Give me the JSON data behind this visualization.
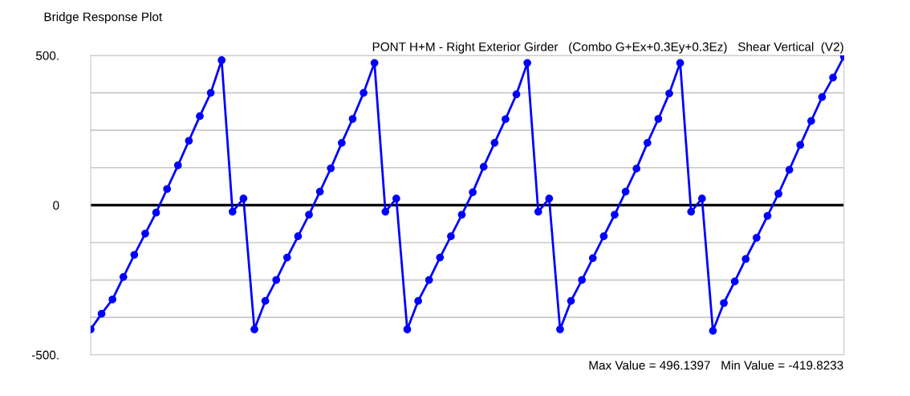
{
  "chart_data": {
    "type": "line",
    "title": "Bridge Response Plot",
    "subtitle": "PONT H+M - Right Exterior Girder   (Combo G+Ex+0.3Ey+0.3Ez)   Shear Vertical  (V2)",
    "annotations": [
      "Max Value = 496.1397   Min Value = -419.8233"
    ],
    "series": [
      {
        "color": "#0000ff",
        "values": [
          -415,
          -363,
          -315,
          -240,
          -166,
          -95,
          -25,
          54,
          133,
          215,
          297,
          375,
          484,
          -22,
          22,
          -415,
          -320,
          -250,
          -175,
          -104,
          -32,
          45,
          123,
          208,
          288,
          375,
          475,
          -22,
          22,
          -415,
          -320,
          -250,
          -175,
          -104,
          -32,
          43,
          128,
          208,
          287,
          370,
          475,
          -22,
          22,
          -415,
          -320,
          -250,
          -177,
          -104,
          -32,
          45,
          122,
          208,
          288,
          373,
          475,
          -22,
          22,
          -419.8,
          -327,
          -255,
          -180,
          -109,
          -36,
          38,
          118,
          201,
          281,
          361,
          426,
          496.1
        ]
      }
    ],
    "categories": [
      null,
      null,
      null,
      null,
      null,
      null,
      null,
      null,
      null,
      null,
      null,
      null,
      null,
      null,
      null,
      null,
      null,
      null,
      null,
      null,
      null,
      null,
      null,
      null,
      null,
      null,
      null,
      null,
      null,
      null,
      null,
      null,
      null,
      null,
      null,
      null,
      null,
      null,
      null,
      null,
      null,
      null,
      null,
      null,
      null,
      null,
      null,
      null,
      null,
      null,
      null,
      null,
      null,
      null,
      null,
      null,
      null,
      null,
      null,
      null,
      null,
      null,
      null,
      null,
      null,
      null,
      null,
      null,
      null,
      null
    ],
    "ylim": [
      -500,
      500
    ],
    "yticks": [
      {
        "value": -500,
        "label": "-500."
      },
      {
        "value": -375,
        "label": null
      },
      {
        "value": -250,
        "label": null
      },
      {
        "value": -125,
        "label": null
      },
      {
        "value": 0,
        "label": "0"
      },
      {
        "value": 125,
        "label": null
      },
      {
        "value": 250,
        "label": null
      },
      {
        "value": 375,
        "label": null
      },
      {
        "value": 500,
        "label": "500."
      }
    ],
    "tick_labels": "y",
    "ref_lines": [
      {
        "axis": "y",
        "value": 0,
        "color": "#000000"
      }
    ],
    "grid": "y",
    "marker": "circle",
    "line_style": "solid"
  }
}
